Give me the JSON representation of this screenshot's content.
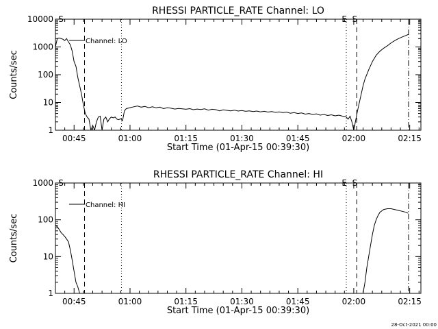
{
  "footer_date": "28-Oct-2021 00:00",
  "chart_data": [
    {
      "type": "line",
      "title": "RHESSI PARTICLE_RATE Channel: LO",
      "xlabel": "Start Time (01-Apr-15 00:39:30)",
      "ylabel": "Counts/sec",
      "yscale": "log",
      "ylim": [
        1,
        10000
      ],
      "xlim": [
        40,
        138
      ],
      "x_unit": "minutes after 00:00 UT",
      "x_ticks": [
        {
          "value": 45,
          "label": "00:45"
        },
        {
          "value": 60,
          "label": "01:00"
        },
        {
          "value": 75,
          "label": "01:15"
        },
        {
          "value": 90,
          "label": "01:30"
        },
        {
          "value": 105,
          "label": "01:45"
        },
        {
          "value": 120,
          "label": "02:00"
        },
        {
          "value": 135,
          "label": "02:15"
        }
      ],
      "y_ticks": [
        {
          "value": 1,
          "label": "1"
        },
        {
          "value": 10,
          "label": "10"
        },
        {
          "value": 100,
          "label": "100"
        },
        {
          "value": 1000,
          "label": "1000"
        },
        {
          "value": 10000,
          "label": "10000"
        }
      ],
      "legend": {
        "label": "Channel: LO",
        "placement": "top-left"
      },
      "markers": [
        {
          "x": 40.6,
          "style": "none",
          "label": "S"
        },
        {
          "x": 47.8,
          "style": "dashed",
          "label": ""
        },
        {
          "x": 57.7,
          "style": "dotted",
          "label": ""
        },
        {
          "x": 118.0,
          "style": "dotted",
          "label": "E"
        },
        {
          "x": 120.8,
          "style": "dashed",
          "label": "S"
        },
        {
          "x": 134.7,
          "style": "dashdot",
          "label": ""
        }
      ],
      "series": [
        {
          "name": "Channel: LO",
          "x": [
            40,
            40.5,
            41,
            42,
            42.5,
            43,
            43.5,
            44,
            44.5,
            45,
            45.5,
            46,
            46.5,
            47,
            47.5,
            48,
            48.5,
            49,
            49.5,
            50,
            50.5,
            51,
            51.5,
            52,
            52.5,
            53,
            53.5,
            54,
            54.5,
            55,
            55.5,
            56,
            56.5,
            57,
            57.5,
            58,
            58.5,
            59,
            60,
            61,
            62,
            63,
            64,
            65,
            66,
            67,
            68,
            69,
            70,
            71,
            72,
            73,
            74,
            75,
            76,
            77,
            78,
            79,
            80,
            81,
            82,
            83,
            84,
            85,
            86,
            87,
            88,
            89,
            90,
            91,
            92,
            93,
            94,
            95,
            96,
            97,
            98,
            99,
            100,
            101,
            102,
            103,
            104,
            105,
            106,
            107,
            108,
            109,
            110,
            111,
            112,
            113,
            114,
            115,
            116,
            117,
            118,
            118.5,
            119,
            119.5,
            120,
            120.5,
            121,
            121.5,
            122,
            122.5,
            123,
            124,
            125,
            126,
            127,
            128,
            129,
            130,
            131,
            132,
            133,
            134,
            134.6
          ],
          "y": [
            1000,
            2000,
            2100,
            1900,
            1700,
            2000,
            1500,
            1200,
            700,
            300,
            200,
            80,
            40,
            20,
            8,
            4,
            3,
            2.5,
            1,
            1.5,
            1,
            2,
            3,
            3.2,
            1,
            2.5,
            3,
            2,
            2.6,
            3,
            2.8,
            3,
            2.5,
            2.4,
            2.6,
            2.2,
            5,
            6,
            6.5,
            7,
            7.5,
            6.8,
            7.2,
            6.5,
            7.0,
            6.4,
            6.8,
            6.0,
            6.5,
            6.2,
            5.8,
            6.1,
            5.9,
            5.7,
            6.0,
            5.5,
            5.8,
            5.6,
            5.9,
            5.3,
            5.7,
            5.5,
            5.0,
            5.4,
            5.2,
            5.0,
            5.3,
            4.9,
            5.1,
            4.8,
            5.0,
            4.7,
            4.9,
            4.6,
            4.8,
            4.5,
            4.7,
            4.4,
            4.6,
            4.3,
            4.5,
            4.1,
            4.3,
            4.0,
            4.2,
            3.8,
            4.0,
            3.7,
            3.9,
            3.5,
            3.7,
            3.4,
            3.6,
            3.3,
            3.5,
            3.2,
            3.0,
            2.5,
            3.2,
            2.0,
            1.0,
            2.2,
            5,
            10,
            20,
            40,
            70,
            150,
            300,
            500,
            700,
            900,
            1100,
            1400,
            1700,
            2000,
            2300,
            2600,
            2800
          ]
        }
      ]
    },
    {
      "type": "line",
      "title": "RHESSI PARTICLE_RATE Channel: HI",
      "xlabel": "Start Time (01-Apr-15 00:39:30)",
      "ylabel": "Counts/sec",
      "yscale": "log",
      "ylim": [
        1,
        1000
      ],
      "xlim": [
        40,
        138
      ],
      "x_unit": "minutes after 00:00 UT",
      "x_ticks": [
        {
          "value": 45,
          "label": "00:45"
        },
        {
          "value": 60,
          "label": "01:00"
        },
        {
          "value": 75,
          "label": "01:15"
        },
        {
          "value": 90,
          "label": "01:30"
        },
        {
          "value": 105,
          "label": "01:45"
        },
        {
          "value": 120,
          "label": "02:00"
        },
        {
          "value": 135,
          "label": "02:15"
        }
      ],
      "y_ticks": [
        {
          "value": 1,
          "label": "1"
        },
        {
          "value": 10,
          "label": "10"
        },
        {
          "value": 100,
          "label": "100"
        },
        {
          "value": 1000,
          "label": "1000"
        }
      ],
      "legend": {
        "label": "Channel: HI",
        "placement": "top-left"
      },
      "markers": [
        {
          "x": 40.6,
          "style": "none",
          "label": "S"
        },
        {
          "x": 47.8,
          "style": "dashed",
          "label": ""
        },
        {
          "x": 57.7,
          "style": "dotted",
          "label": ""
        },
        {
          "x": 118.0,
          "style": "dotted",
          "label": "E"
        },
        {
          "x": 120.8,
          "style": "dashed",
          "label": "S"
        },
        {
          "x": 134.7,
          "style": "dashdot",
          "label": ""
        }
      ],
      "series": [
        {
          "name": "Channel: HI",
          "x": [
            40,
            40.5,
            41,
            41.5,
            42,
            42.5,
            43,
            43.5,
            44,
            44.5,
            45,
            45.5,
            46,
            46.5,
            46.8,
            122,
            122.5,
            123,
            123.5,
            124,
            124.5,
            125,
            125.5,
            126,
            126.5,
            127,
            128,
            129,
            130,
            131,
            132,
            133,
            134,
            134.6
          ],
          "y": [
            70,
            65,
            55,
            45,
            40,
            35,
            30,
            25,
            15,
            8,
            4,
            2,
            1.5,
            1,
            0.5,
            0.5,
            1,
            2,
            5,
            10,
            20,
            40,
            70,
            100,
            130,
            160,
            190,
            200,
            200,
            190,
            180,
            170,
            160,
            150
          ]
        }
      ]
    }
  ]
}
